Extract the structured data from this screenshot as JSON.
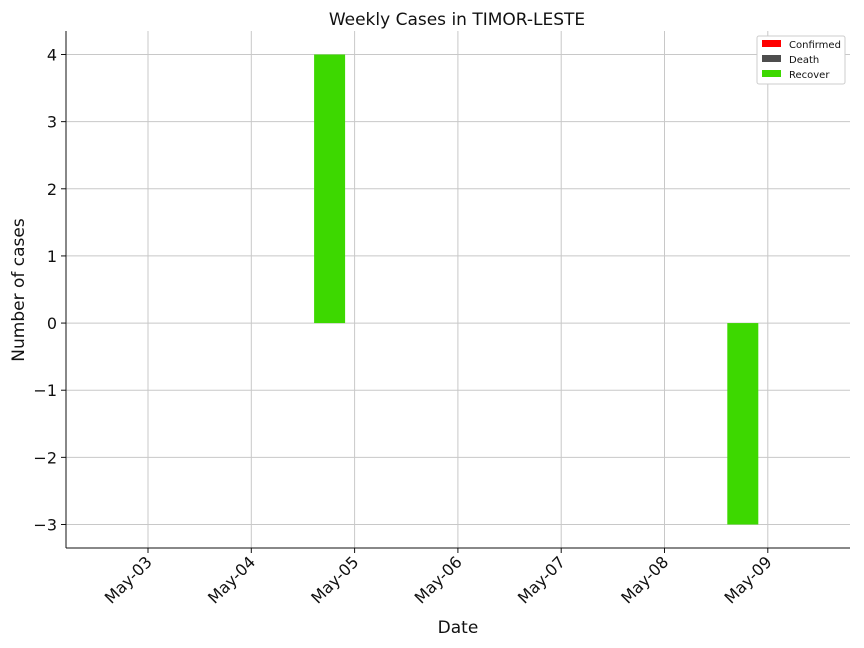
{
  "chart_data": {
    "type": "bar",
    "title": "Weekly Cases in TIMOR-LESTE",
    "xlabel": "Date",
    "ylabel": "Number of cases",
    "categories": [
      "May-03",
      "May-04",
      "May-05",
      "May-06",
      "May-07",
      "May-08",
      "May-09"
    ],
    "series": [
      {
        "name": "Confirmed",
        "color": "#ff0000",
        "values": [
          0,
          0,
          0,
          0,
          0,
          0,
          0
        ]
      },
      {
        "name": "Death",
        "color": "#4d4d4d",
        "values": [
          0,
          0,
          0,
          0,
          0,
          0,
          0
        ]
      },
      {
        "name": "Recover",
        "color": "#3dd800",
        "values": [
          0,
          0,
          4,
          0,
          0,
          0,
          -3
        ]
      }
    ],
    "ylim": [
      -3.35,
      4.35
    ],
    "yticks": [
      -3,
      -2,
      -1,
      0,
      1,
      2,
      3,
      4
    ],
    "ytick_labels": [
      "−3",
      "−2",
      "−1",
      "0",
      "1",
      "2",
      "3",
      "4"
    ],
    "grid": true,
    "legend_position": "top-right"
  }
}
